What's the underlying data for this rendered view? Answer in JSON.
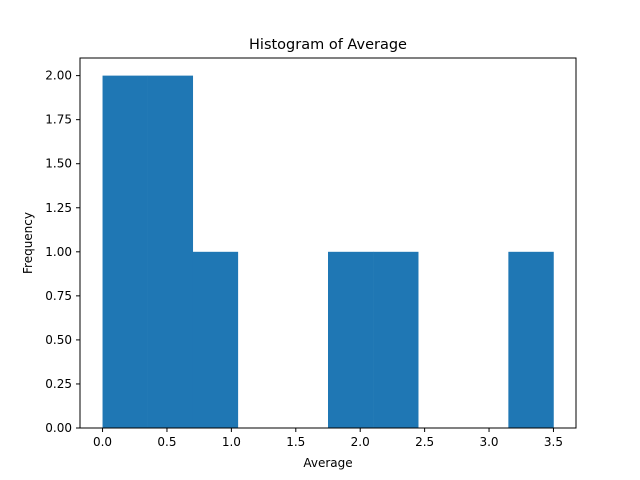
{
  "chart_data": {
    "type": "bar",
    "title": "Histogram of Average",
    "xlabel": "Average",
    "ylabel": "Frequency",
    "bins": [
      {
        "x0": 0.0,
        "x1": 0.35,
        "count": 2
      },
      {
        "x0": 0.35,
        "x1": 0.7,
        "count": 2
      },
      {
        "x0": 0.7,
        "x1": 1.05,
        "count": 1
      },
      {
        "x0": 1.05,
        "x1": 1.4,
        "count": 0
      },
      {
        "x0": 1.4,
        "x1": 1.75,
        "count": 0
      },
      {
        "x0": 1.75,
        "x1": 2.1,
        "count": 1
      },
      {
        "x0": 2.1,
        "x1": 2.45,
        "count": 1
      },
      {
        "x0": 2.45,
        "x1": 2.8,
        "count": 0
      },
      {
        "x0": 2.8,
        "x1": 3.15,
        "count": 0
      },
      {
        "x0": 3.15,
        "x1": 3.5,
        "count": 1
      }
    ],
    "xlim": [
      -0.175,
      3.675
    ],
    "ylim": [
      0,
      2.1
    ],
    "xticks": [
      0.0,
      0.5,
      1.0,
      1.5,
      2.0,
      2.5,
      3.0,
      3.5
    ],
    "xtick_labels": [
      "0.0",
      "0.5",
      "1.0",
      "1.5",
      "2.0",
      "2.5",
      "3.0",
      "3.5"
    ],
    "yticks": [
      0.0,
      0.25,
      0.5,
      0.75,
      1.0,
      1.25,
      1.5,
      1.75,
      2.0
    ],
    "ytick_labels": [
      "0.00",
      "0.25",
      "0.50",
      "0.75",
      "1.00",
      "1.25",
      "1.50",
      "1.75",
      "2.00"
    ],
    "grid": false,
    "bar_color": "#1f77b4"
  }
}
